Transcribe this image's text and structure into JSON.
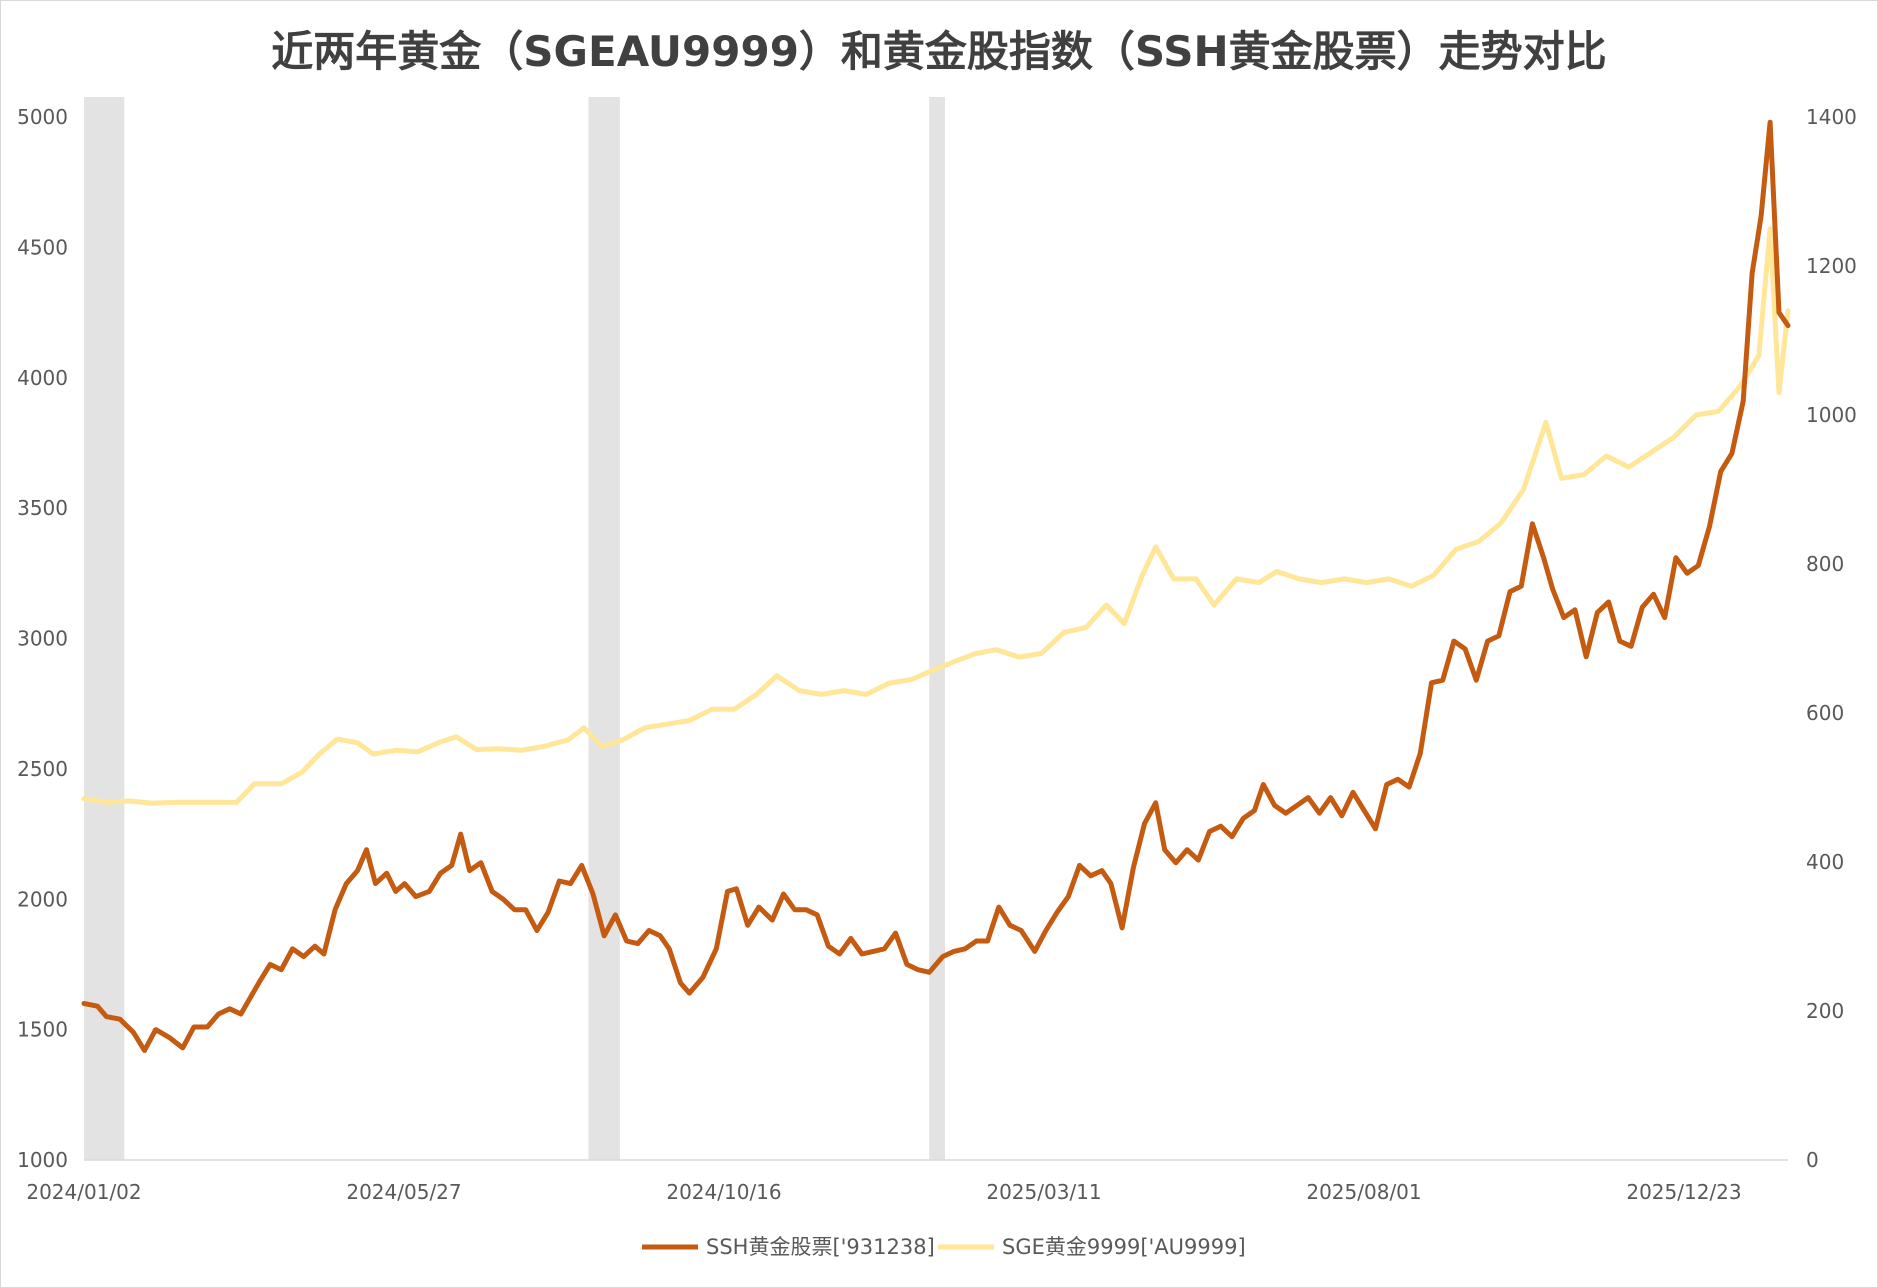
{
  "chart_data": {
    "type": "line",
    "title": "近两年黄金（SGEAU9999）和黄金股指数（SSH黄金股票）走势对比",
    "xlabel": "",
    "ylabel": "",
    "x_tick_labels": [
      "2024/01/02",
      "2024/05/27",
      "2024/10/16",
      "2025/03/11",
      "2025/08/01",
      "2025/12/23"
    ],
    "left_axis": {
      "ticks": [
        1000,
        1500,
        2000,
        2500,
        3000,
        3500,
        4000,
        4500,
        5000
      ],
      "ylim": [
        1000,
        5000
      ]
    },
    "right_axis": {
      "ticks": [
        0,
        200,
        400,
        600,
        800,
        1000,
        1200,
        1400
      ],
      "ylim": [
        0,
        1400
      ]
    },
    "x_domain": [
      "2024-01-02",
      "2026-01-31"
    ],
    "shaded_periods": [
      {
        "start": "2024-01-02",
        "end": "2024-01-20"
      },
      {
        "start": "2024-08-14",
        "end": "2024-08-28"
      },
      {
        "start": "2025-01-13",
        "end": "2025-01-20"
      }
    ],
    "series": [
      {
        "name": "SSH黄金股票['931238]",
        "axis": "left",
        "color": "#c55a11",
        "points": [
          [
            "2024-01-02",
            1600
          ],
          [
            "2024-01-08",
            1590
          ],
          [
            "2024-01-12",
            1550
          ],
          [
            "2024-01-18",
            1540
          ],
          [
            "2024-01-24",
            1490
          ],
          [
            "2024-01-29",
            1420
          ],
          [
            "2024-02-03",
            1500
          ],
          [
            "2024-02-09",
            1470
          ],
          [
            "2024-02-15",
            1430
          ],
          [
            "2024-02-20",
            1510
          ],
          [
            "2024-02-26",
            1510
          ],
          [
            "2024-03-02",
            1560
          ],
          [
            "2024-03-07",
            1580
          ],
          [
            "2024-03-12",
            1560
          ],
          [
            "2024-03-20",
            1680
          ],
          [
            "2024-03-25",
            1750
          ],
          [
            "2024-03-30",
            1730
          ],
          [
            "2024-04-04",
            1810
          ],
          [
            "2024-04-09",
            1780
          ],
          [
            "2024-04-14",
            1820
          ],
          [
            "2024-04-18",
            1790
          ],
          [
            "2024-04-23",
            1960
          ],
          [
            "2024-04-28",
            2060
          ],
          [
            "2024-05-03",
            2110
          ],
          [
            "2024-05-07",
            2190
          ],
          [
            "2024-05-11",
            2060
          ],
          [
            "2024-05-16",
            2100
          ],
          [
            "2024-05-20",
            2030
          ],
          [
            "2024-05-24",
            2060
          ],
          [
            "2024-05-29",
            2010
          ],
          [
            "2024-06-04",
            2030
          ],
          [
            "2024-06-09",
            2100
          ],
          [
            "2024-06-14",
            2130
          ],
          [
            "2024-06-18",
            2250
          ],
          [
            "2024-06-22",
            2110
          ],
          [
            "2024-06-27",
            2140
          ],
          [
            "2024-07-02",
            2030
          ],
          [
            "2024-07-07",
            2000
          ],
          [
            "2024-07-12",
            1960
          ],
          [
            "2024-07-17",
            1960
          ],
          [
            "2024-07-22",
            1880
          ],
          [
            "2024-07-27",
            1950
          ],
          [
            "2024-08-01",
            2070
          ],
          [
            "2024-08-06",
            2060
          ],
          [
            "2024-08-11",
            2130
          ],
          [
            "2024-08-16",
            2020
          ],
          [
            "2024-08-21",
            1860
          ],
          [
            "2024-08-26",
            1940
          ],
          [
            "2024-08-31",
            1840
          ],
          [
            "2024-09-05",
            1830
          ],
          [
            "2024-09-10",
            1880
          ],
          [
            "2024-09-15",
            1860
          ],
          [
            "2024-09-19",
            1810
          ],
          [
            "2024-09-24",
            1680
          ],
          [
            "2024-09-28",
            1640
          ],
          [
            "2024-10-04",
            1700
          ],
          [
            "2024-10-10",
            1810
          ],
          [
            "2024-10-15",
            2030
          ],
          [
            "2024-10-19",
            2040
          ],
          [
            "2024-10-24",
            1900
          ],
          [
            "2024-10-29",
            1970
          ],
          [
            "2024-11-04",
            1920
          ],
          [
            "2024-11-09",
            2020
          ],
          [
            "2024-11-14",
            1960
          ],
          [
            "2024-11-19",
            1960
          ],
          [
            "2024-11-24",
            1940
          ],
          [
            "2024-11-29",
            1820
          ],
          [
            "2024-12-04",
            1790
          ],
          [
            "2024-12-09",
            1850
          ],
          [
            "2024-12-14",
            1790
          ],
          [
            "2024-12-19",
            1800
          ],
          [
            "2024-12-24",
            1810
          ],
          [
            "2024-12-29",
            1870
          ],
          [
            "2025-01-03",
            1750
          ],
          [
            "2025-01-08",
            1730
          ],
          [
            "2025-01-13",
            1720
          ],
          [
            "2025-01-19",
            1780
          ],
          [
            "2025-01-24",
            1800
          ],
          [
            "2025-01-29",
            1810
          ],
          [
            "2025-02-03",
            1840
          ],
          [
            "2025-02-08",
            1840
          ],
          [
            "2025-02-13",
            1970
          ],
          [
            "2025-02-18",
            1900
          ],
          [
            "2025-02-23",
            1880
          ],
          [
            "2025-03-01",
            1800
          ],
          [
            "2025-03-06",
            1880
          ],
          [
            "2025-03-11",
            1950
          ],
          [
            "2025-03-16",
            2010
          ],
          [
            "2025-03-21",
            2130
          ],
          [
            "2025-03-26",
            2090
          ],
          [
            "2025-03-31",
            2110
          ],
          [
            "2025-04-04",
            2060
          ],
          [
            "2025-04-09",
            1890
          ],
          [
            "2025-04-14",
            2120
          ],
          [
            "2025-04-19",
            2290
          ],
          [
            "2025-04-24",
            2370
          ],
          [
            "2025-04-28",
            2190
          ],
          [
            "2025-05-03",
            2140
          ],
          [
            "2025-05-08",
            2190
          ],
          [
            "2025-05-13",
            2150
          ],
          [
            "2025-05-18",
            2260
          ],
          [
            "2025-05-23",
            2280
          ],
          [
            "2025-05-28",
            2240
          ],
          [
            "2025-06-02",
            2310
          ],
          [
            "2025-06-07",
            2340
          ],
          [
            "2025-06-11",
            2440
          ],
          [
            "2025-06-16",
            2360
          ],
          [
            "2025-06-21",
            2330
          ],
          [
            "2025-06-26",
            2360
          ],
          [
            "2025-07-01",
            2390
          ],
          [
            "2025-07-06",
            2330
          ],
          [
            "2025-07-11",
            2390
          ],
          [
            "2025-07-16",
            2320
          ],
          [
            "2025-07-21",
            2410
          ],
          [
            "2025-07-26",
            2340
          ],
          [
            "2025-07-31",
            2270
          ],
          [
            "2025-08-05",
            2440
          ],
          [
            "2025-08-10",
            2460
          ],
          [
            "2025-08-15",
            2430
          ],
          [
            "2025-08-20",
            2560
          ],
          [
            "2025-08-25",
            2830
          ],
          [
            "2025-08-30",
            2840
          ],
          [
            "2025-09-04",
            2990
          ],
          [
            "2025-09-09",
            2960
          ],
          [
            "2025-09-14",
            2840
          ],
          [
            "2025-09-19",
            2990
          ],
          [
            "2025-09-24",
            3010
          ],
          [
            "2025-09-29",
            3180
          ],
          [
            "2025-10-04",
            3200
          ],
          [
            "2025-10-09",
            3440
          ],
          [
            "2025-10-14",
            3310
          ],
          [
            "2025-10-18",
            3190
          ],
          [
            "2025-10-23",
            3080
          ],
          [
            "2025-10-28",
            3110
          ],
          [
            "2025-11-02",
            2930
          ],
          [
            "2025-11-07",
            3100
          ],
          [
            "2025-11-12",
            3140
          ],
          [
            "2025-11-17",
            2990
          ],
          [
            "2025-11-22",
            2970
          ],
          [
            "2025-11-27",
            3120
          ],
          [
            "2025-12-02",
            3170
          ],
          [
            "2025-12-07",
            3080
          ],
          [
            "2025-12-12",
            3310
          ],
          [
            "2025-12-17",
            3250
          ],
          [
            "2025-12-22",
            3280
          ],
          [
            "2025-12-27",
            3430
          ],
          [
            "2026-01-01",
            3640
          ],
          [
            "2026-01-06",
            3710
          ],
          [
            "2026-01-11",
            3910
          ],
          [
            "2026-01-15",
            4400
          ],
          [
            "2026-01-19",
            4620
          ],
          [
            "2026-01-23",
            4980
          ],
          [
            "2026-01-27",
            4250
          ],
          [
            "2026-01-31",
            4200
          ]
        ]
      },
      {
        "name": "SGE黄金9999['AU9999]",
        "axis": "right",
        "color": "#ffe699",
        "points": [
          [
            "2024-01-02",
            485
          ],
          [
            "2024-01-12",
            480
          ],
          [
            "2024-01-22",
            482
          ],
          [
            "2024-02-01",
            479
          ],
          [
            "2024-02-12",
            480
          ],
          [
            "2024-02-25",
            480
          ],
          [
            "2024-03-10",
            480
          ],
          [
            "2024-03-18",
            505
          ],
          [
            "2024-03-30",
            505
          ],
          [
            "2024-04-08",
            520
          ],
          [
            "2024-04-16",
            545
          ],
          [
            "2024-04-24",
            565
          ],
          [
            "2024-05-03",
            560
          ],
          [
            "2024-05-10",
            545
          ],
          [
            "2024-05-20",
            550
          ],
          [
            "2024-05-30",
            548
          ],
          [
            "2024-06-08",
            560
          ],
          [
            "2024-06-16",
            568
          ],
          [
            "2024-06-25",
            551
          ],
          [
            "2024-07-05",
            552
          ],
          [
            "2024-07-15",
            550
          ],
          [
            "2024-07-25",
            555
          ],
          [
            "2024-08-05",
            564
          ],
          [
            "2024-08-12",
            580
          ],
          [
            "2024-08-20",
            555
          ],
          [
            "2024-08-30",
            565
          ],
          [
            "2024-09-08",
            580
          ],
          [
            "2024-09-18",
            585
          ],
          [
            "2024-09-28",
            590
          ],
          [
            "2024-10-08",
            605
          ],
          [
            "2024-10-18",
            605
          ],
          [
            "2024-10-28",
            625
          ],
          [
            "2024-11-06",
            650
          ],
          [
            "2024-11-16",
            630
          ],
          [
            "2024-11-26",
            625
          ],
          [
            "2024-12-06",
            630
          ],
          [
            "2024-12-16",
            625
          ],
          [
            "2024-12-26",
            640
          ],
          [
            "2025-01-05",
            645
          ],
          [
            "2025-01-15",
            658
          ],
          [
            "2025-01-25",
            670
          ],
          [
            "2025-02-03",
            680
          ],
          [
            "2025-02-12",
            685
          ],
          [
            "2025-02-22",
            675
          ],
          [
            "2025-03-04",
            680
          ],
          [
            "2025-03-14",
            708
          ],
          [
            "2025-03-24",
            715
          ],
          [
            "2025-04-02",
            745
          ],
          [
            "2025-04-10",
            720
          ],
          [
            "2025-04-18",
            785
          ],
          [
            "2025-04-24",
            823
          ],
          [
            "2025-05-02",
            780
          ],
          [
            "2025-05-12",
            780
          ],
          [
            "2025-05-20",
            745
          ],
          [
            "2025-05-30",
            780
          ],
          [
            "2025-06-09",
            775
          ],
          [
            "2025-06-17",
            790
          ],
          [
            "2025-06-27",
            780
          ],
          [
            "2025-07-07",
            775
          ],
          [
            "2025-07-17",
            780
          ],
          [
            "2025-07-27",
            775
          ],
          [
            "2025-08-06",
            780
          ],
          [
            "2025-08-16",
            770
          ],
          [
            "2025-08-26",
            785
          ],
          [
            "2025-09-05",
            820
          ],
          [
            "2025-09-15",
            830
          ],
          [
            "2025-09-25",
            855
          ],
          [
            "2025-10-05",
            900
          ],
          [
            "2025-10-15",
            990
          ],
          [
            "2025-10-22",
            915
          ],
          [
            "2025-11-01",
            920
          ],
          [
            "2025-11-11",
            945
          ],
          [
            "2025-11-21",
            930
          ],
          [
            "2025-12-01",
            950
          ],
          [
            "2025-12-11",
            970
          ],
          [
            "2025-12-21",
            1000
          ],
          [
            "2025-12-31",
            1005
          ],
          [
            "2026-01-10",
            1040
          ],
          [
            "2026-01-18",
            1080
          ],
          [
            "2026-01-23",
            1250
          ],
          [
            "2026-01-27",
            1030
          ],
          [
            "2026-01-31",
            1140
          ]
        ]
      }
    ]
  }
}
